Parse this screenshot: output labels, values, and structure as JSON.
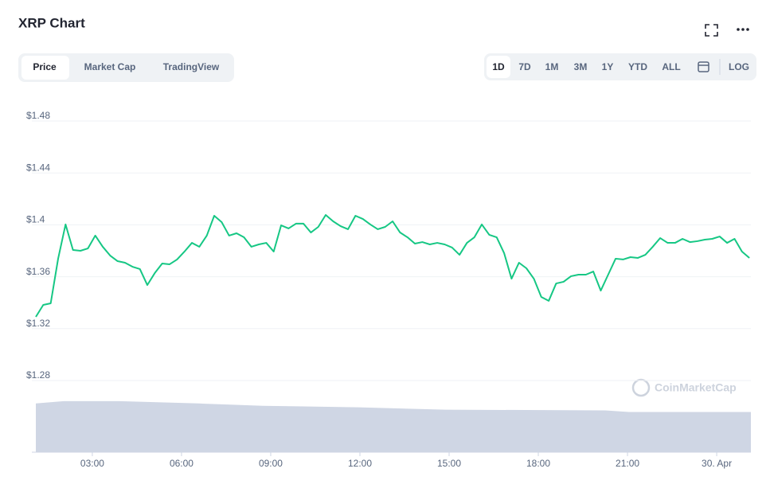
{
  "chart_data": {
    "type": "line",
    "title": "XRP Chart",
    "x": [
      1.1,
      1.35,
      1.6,
      1.85,
      2.1,
      2.35,
      2.6,
      2.85,
      3.1,
      3.35,
      3.6,
      3.85,
      4.1,
      4.35,
      4.6,
      4.85,
      5.1,
      5.35,
      5.6,
      5.85,
      6.1,
      6.35,
      6.6,
      6.85,
      7.1,
      7.35,
      7.6,
      7.85,
      8.1,
      8.35,
      8.6,
      8.85,
      9.1,
      9.35,
      9.6,
      9.85,
      10.1,
      10.35,
      10.6,
      10.85,
      11.1,
      11.35,
      11.6,
      11.85,
      12.1,
      12.35,
      12.6,
      12.85,
      13.1,
      13.35,
      13.6,
      13.85,
      14.1,
      14.35,
      14.6,
      14.85,
      15.1,
      15.35,
      15.6,
      15.85,
      16.1,
      16.35,
      16.6,
      16.85,
      17.1,
      17.35,
      17.6,
      17.85,
      18.1,
      18.35,
      18.6,
      18.85,
      19.1,
      19.35,
      19.6,
      19.85,
      20.1,
      20.35,
      20.6,
      20.85,
      21.1,
      21.35,
      21.6,
      21.85,
      22.1,
      22.35,
      22.6,
      22.85,
      23.1,
      23.35,
      23.6,
      23.85,
      24.1,
      24.35,
      24.6,
      24.85,
      25.1
    ],
    "series": [
      {
        "color": "#16c784",
        "values": [
          1.3291,
          1.3383,
          1.3395,
          1.3739,
          1.4003,
          1.3806,
          1.38,
          1.3818,
          1.3917,
          1.3831,
          1.3763,
          1.372,
          1.3708,
          1.3677,
          1.3659,
          1.3536,
          1.3628,
          1.3702,
          1.3696,
          1.3733,
          1.3794,
          1.3861,
          1.3831,
          1.3917,
          1.407,
          1.4021,
          1.3917,
          1.3935,
          1.3904,
          1.3831,
          1.3849,
          1.3861,
          1.3794,
          1.3996,
          1.3972,
          1.4009,
          1.4009,
          1.3941,
          1.3984,
          1.4076,
          1.4027,
          1.399,
          1.3966,
          1.407,
          1.4045,
          1.4003,
          1.3966,
          1.3984,
          1.4027,
          1.3941,
          1.3904,
          1.3855,
          1.3867,
          1.3849,
          1.3861,
          1.3849,
          1.3825,
          1.3769,
          1.3861,
          1.3904,
          1.4003,
          1.3923,
          1.3904,
          1.3782,
          1.3585,
          1.3708,
          1.3665,
          1.3585,
          1.3444,
          1.3414,
          1.3548,
          1.3561,
          1.3604,
          1.3616,
          1.3616,
          1.364,
          1.3493,
          1.3616,
          1.3739,
          1.3733,
          1.3751,
          1.3745,
          1.3769,
          1.3831,
          1.3898,
          1.3861,
          1.3861,
          1.3892,
          1.3867,
          1.3874,
          1.3886,
          1.3892,
          1.391,
          1.3861,
          1.3892,
          1.3794,
          1.3745
        ]
      }
    ],
    "volume": {
      "color": "#cfd6e4",
      "x": [
        1.1,
        2.04,
        3.91,
        6.59,
        8.73,
        11.95,
        14.89,
        20.25,
        21.05,
        25.15
      ],
      "values": [
        63,
        66,
        66,
        63,
        60,
        58,
        55,
        54,
        52,
        52
      ],
      "ylim": [
        0,
        70
      ]
    },
    "xlim": [
      1.1,
      25.15
    ],
    "xticks": [
      {
        "value": 3,
        "label": "03:00"
      },
      {
        "value": 6,
        "label": "06:00"
      },
      {
        "value": 9,
        "label": "09:00"
      },
      {
        "value": 12,
        "label": "12:00"
      },
      {
        "value": 15,
        "label": "15:00"
      },
      {
        "value": 18,
        "label": "18:00"
      },
      {
        "value": 21,
        "label": "21:00"
      },
      {
        "value": 24,
        "label": "30. Apr"
      }
    ],
    "ylim": [
      1.28,
      1.48
    ],
    "yticks": [
      {
        "value": 1.28,
        "label": "$1.28"
      },
      {
        "value": 1.32,
        "label": "$1.32"
      },
      {
        "value": 1.36,
        "label": "$1.36"
      },
      {
        "value": 1.4,
        "label": "$1.4"
      },
      {
        "value": 1.44,
        "label": "$1.44"
      },
      {
        "value": 1.48,
        "label": "$1.48"
      }
    ],
    "grid": true
  },
  "ui": {
    "tabs": [
      "Price",
      "Market Cap",
      "TradingView"
    ],
    "ranges": [
      "1D",
      "7D",
      "1M",
      "3M",
      "1Y",
      "YTD",
      "ALL"
    ],
    "log_button": "LOG",
    "watermark": "CoinMarketCap"
  }
}
